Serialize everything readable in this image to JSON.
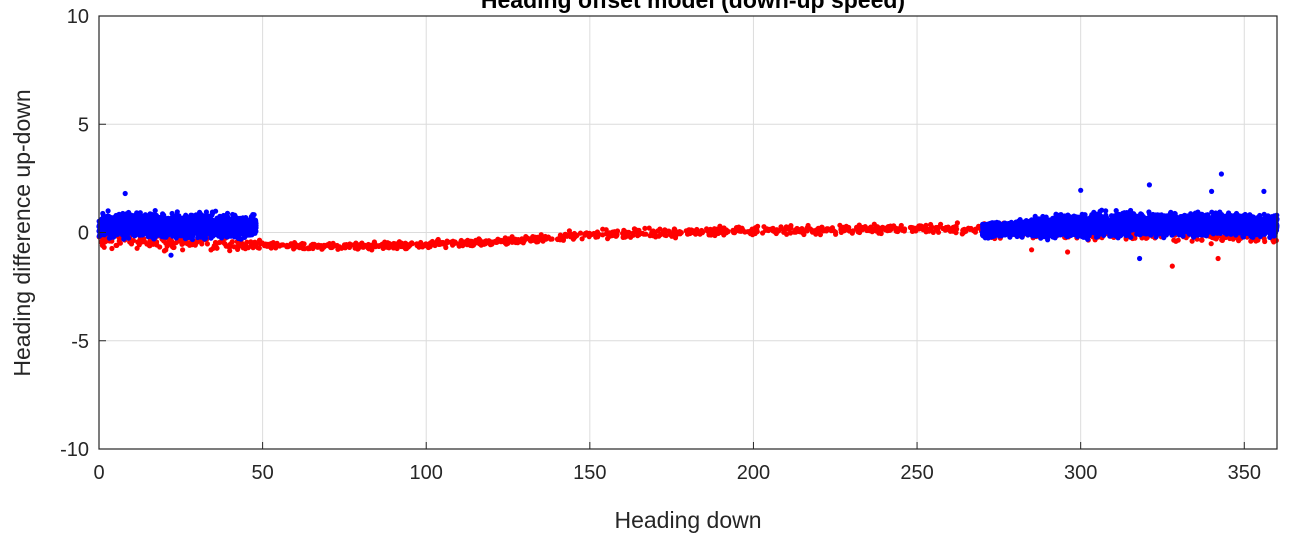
{
  "chart_data": {
    "type": "scatter",
    "title": "Heading offset model (down-up speed)",
    "xlabel": "Heading down",
    "ylabel": "Heading difference up-down",
    "xlim": [
      0,
      360
    ],
    "ylim": [
      -10,
      10
    ],
    "xticks": [
      0,
      50,
      100,
      150,
      200,
      250,
      300,
      350
    ],
    "yticks": [
      -10,
      -5,
      0,
      5,
      10
    ],
    "grid": true,
    "legend": "none",
    "colors": {
      "red_series": "#ff0000",
      "blue_series": "#0000ff",
      "grid": "#dcdcdc",
      "axis": "#262626"
    },
    "series": [
      {
        "color": "#ff0000",
        "trend": [
          [
            0,
            -0.3
          ],
          [
            20,
            -0.4
          ],
          [
            40,
            -0.5
          ],
          [
            50,
            -0.6
          ],
          [
            60,
            -0.65
          ],
          [
            75,
            -0.65
          ],
          [
            100,
            -0.55
          ],
          [
            125,
            -0.4
          ],
          [
            140,
            -0.2
          ],
          [
            160,
            -0.05
          ],
          [
            180,
            0.0
          ],
          [
            200,
            0.1
          ],
          [
            220,
            0.12
          ],
          [
            240,
            0.15
          ],
          [
            250,
            0.2
          ],
          [
            270,
            0.15
          ],
          [
            290,
            0.1
          ],
          [
            300,
            0.05
          ],
          [
            330,
            0.0
          ],
          [
            360,
            -0.2
          ]
        ],
        "outliers": [
          [
            328,
            -1.55
          ],
          [
            342,
            -1.2
          ],
          [
            296,
            -0.9
          ],
          [
            20,
            -0.85
          ],
          [
            285,
            -0.8
          ]
        ]
      },
      {
        "color": "#0000ff",
        "x_ranges": [
          [
            0,
            48
          ],
          [
            270,
            360
          ]
        ],
        "trend": [
          [
            0,
            0.3
          ],
          [
            10,
            0.35
          ],
          [
            20,
            0.3
          ],
          [
            30,
            0.3
          ],
          [
            40,
            0.25
          ],
          [
            48,
            0.3
          ],
          [
            270,
            0.1
          ],
          [
            290,
            0.25
          ],
          [
            300,
            0.35
          ],
          [
            320,
            0.4
          ],
          [
            340,
            0.4
          ],
          [
            360,
            0.3
          ]
        ],
        "outliers": [
          [
            343,
            2.7
          ],
          [
            321,
            2.2
          ],
          [
            8,
            1.8
          ],
          [
            356,
            1.9
          ],
          [
            300,
            1.95
          ],
          [
            340,
            1.9
          ],
          [
            318,
            -1.2
          ],
          [
            22,
            -1.05
          ]
        ]
      }
    ]
  }
}
